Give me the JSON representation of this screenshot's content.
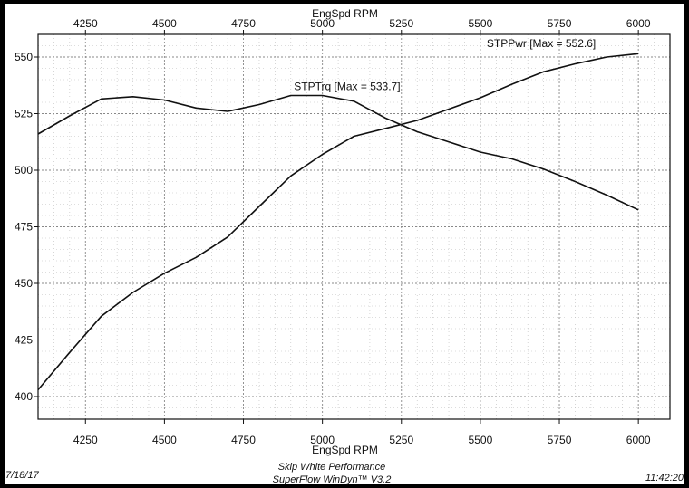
{
  "chart_data": {
    "type": "line",
    "xlabel_top": "EngSpd RPM",
    "xlabel_bottom": "EngSpd RPM",
    "xlim": [
      4100,
      6100
    ],
    "ylim": [
      390,
      560
    ],
    "x_ticks": [
      4250,
      4500,
      4750,
      5000,
      5250,
      5500,
      5750,
      6000
    ],
    "x_tick_labels": [
      "4250",
      "4500",
      "4750",
      "5000",
      "5250",
      "5500",
      "5750",
      "6000"
    ],
    "y_ticks": [
      400,
      425,
      450,
      475,
      500,
      525,
      550
    ],
    "y_tick_labels": [
      "400",
      "425",
      "450",
      "475",
      "500",
      "525",
      "550"
    ],
    "grid": true,
    "series": [
      {
        "name": "STPTrq [Max = 533.7]",
        "x": [
          4100,
          4200,
          4300,
          4400,
          4500,
          4600,
          4700,
          4800,
          4900,
          5000,
          5100,
          5200,
          5300,
          5400,
          5500,
          5600,
          5700,
          5800,
          5900,
          6000
        ],
        "values": [
          516,
          524,
          531.5,
          532.5,
          531,
          527.5,
          526,
          529,
          533,
          533,
          530.5,
          523,
          517,
          512.5,
          508,
          505,
          500.5,
          495,
          489,
          482.5
        ]
      },
      {
        "name": "STPPwr [Max = 552.6]",
        "x": [
          4100,
          4200,
          4300,
          4400,
          4500,
          4600,
          4700,
          4800,
          4900,
          5000,
          5100,
          5200,
          5300,
          5400,
          5500,
          5600,
          5700,
          5800,
          5900,
          6000
        ],
        "values": [
          403,
          419.5,
          435.5,
          446,
          454.5,
          461.5,
          470.5,
          484,
          497.5,
          507,
          515,
          518.5,
          522,
          527,
          532,
          538,
          543.5,
          547,
          550,
          551.5
        ]
      }
    ]
  },
  "footer": {
    "date": "7/18/17",
    "company": "Skip White Performance",
    "software": "SuperFlow WinDyn™ V3.2",
    "time": "11:42:20"
  }
}
